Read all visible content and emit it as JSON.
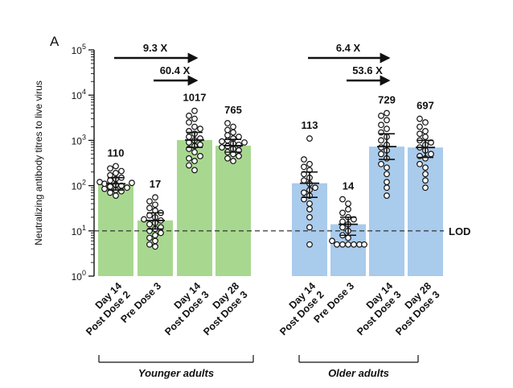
{
  "chart_data": {
    "type": "bar",
    "panel_label": "A",
    "ylabel": "Neutralizing antibody titres to live virus",
    "y_scale": "log",
    "ylim": [
      1,
      100000
    ],
    "y_ticks": [
      {
        "base": "10",
        "exp": "0"
      },
      {
        "base": "10",
        "exp": "1"
      },
      {
        "base": "10",
        "exp": "2"
      },
      {
        "base": "10",
        "exp": "3"
      },
      {
        "base": "10",
        "exp": "4"
      },
      {
        "base": "10",
        "exp": "5"
      }
    ],
    "lod": {
      "label": "LOD",
      "value": 10
    },
    "colors": {
      "younger": "#a8d88f",
      "older": "#a9cbec"
    },
    "groups": [
      {
        "name": "Younger adults",
        "color": "#a8d88f",
        "bars": [
          {
            "label_line1": "Day 14",
            "label_line2": "Post Dose 2",
            "value": 110,
            "value_label": "110",
            "err_low": 80,
            "err_high": 150,
            "points": [
              60,
              70,
              75,
              80,
              85,
              90,
              95,
              100,
              105,
              110,
              115,
              120,
              130,
              140,
              150,
              170,
              190,
              210,
              240,
              270
            ]
          },
          {
            "label_line1": "Pre Dose 3",
            "label_line2": "",
            "value": 17,
            "value_label": "17",
            "err_low": 11,
            "err_high": 25,
            "points": [
              4.5,
              5,
              6,
              7,
              8,
              9,
              10,
              11,
              12,
              14,
              15,
              17,
              18,
              20,
              22,
              25,
              28,
              32,
              38,
              45,
              55
            ]
          },
          {
            "label_line1": "Day 14",
            "label_line2": "Post Dose 3",
            "value": 1017,
            "value_label": "1017",
            "err_low": 700,
            "err_high": 1500,
            "points": [
              220,
              280,
              350,
              400,
              450,
              550,
              650,
              750,
              800,
              900,
              1000,
              1100,
              1200,
              1400,
              1600,
              1800,
              2000,
              2500,
              3000,
              3500,
              4500
            ]
          },
          {
            "label_line1": "Day 28",
            "label_line2": "Post Dose 3",
            "value": 765,
            "value_label": "765",
            "err_low": 550,
            "err_high": 1050,
            "points": [
              350,
              400,
              450,
              500,
              550,
              600,
              650,
              700,
              750,
              800,
              850,
              900,
              950,
              1000,
              1100,
              1200,
              1300,
              1500,
              1700,
              2000,
              2400
            ]
          }
        ]
      },
      {
        "name": "Older adults",
        "color": "#a9cbec",
        "bars": [
          {
            "label_line1": "Day 14",
            "label_line2": "Post Dose 2",
            "value": 113,
            "value_label": "113",
            "err_low": 55,
            "err_high": 200,
            "points": [
              5,
              12,
              20,
              30,
              40,
              50,
              60,
              70,
              80,
              90,
              110,
              130,
              150,
              180,
              220,
              260,
              300,
              380,
              1100
            ]
          },
          {
            "label_line1": "Pre Dose 3",
            "label_line2": "",
            "value": 14,
            "value_label": "14",
            "err_low": 8,
            "err_high": 20,
            "points": [
              5,
              5,
              5,
              5,
              5,
              5,
              6,
              7,
              8,
              10,
              12,
              14,
              16,
              18,
              20,
              25,
              30,
              40,
              50
            ]
          },
          {
            "label_line1": "Day 14",
            "label_line2": "Post Dose 3",
            "value": 729,
            "value_label": "729",
            "err_low": 380,
            "err_high": 1400,
            "points": [
              60,
              90,
              120,
              180,
              250,
              300,
              400,
              500,
              600,
              700,
              800,
              1000,
              1200,
              1500,
              1800,
              2200,
              2800,
              3500,
              4000
            ]
          },
          {
            "label_line1": "Day 28",
            "label_line2": "Post Dose 3",
            "value": 697,
            "value_label": "697",
            "err_low": 420,
            "err_high": 1000,
            "points": [
              90,
              130,
              180,
              250,
              300,
              400,
              450,
              500,
              600,
              700,
              800,
              900,
              1000,
              1200,
              1400,
              1600,
              2000,
              2500,
              3000
            ]
          }
        ]
      }
    ],
    "fold_arrows": [
      {
        "label": "9.3 X",
        "from_bar": 0,
        "to_bar": 2
      },
      {
        "label": "60.4 X",
        "from_bar": 1,
        "to_bar": 2
      },
      {
        "label": "6.4 X",
        "from_bar": 4,
        "to_bar": 6
      },
      {
        "label": "53.6 X",
        "from_bar": 5,
        "to_bar": 6
      }
    ]
  }
}
